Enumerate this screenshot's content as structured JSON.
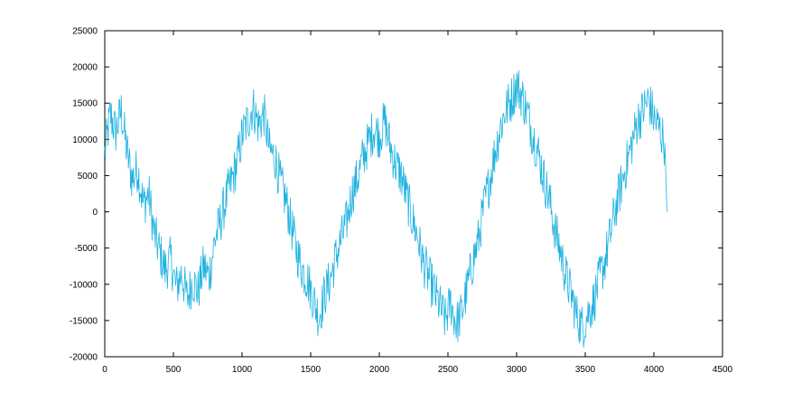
{
  "chart_data": {
    "type": "line",
    "title": "",
    "xlabel": "",
    "ylabel": "",
    "xlim": [
      0,
      4500
    ],
    "ylim": [
      -20000,
      25000
    ],
    "x_ticks": [
      0,
      500,
      1000,
      1500,
      2000,
      2500,
      3000,
      3500,
      4000,
      4500
    ],
    "y_ticks": [
      -20000,
      -15000,
      -10000,
      -5000,
      0,
      5000,
      10000,
      15000,
      20000,
      25000
    ],
    "x_tick_labels": [
      "0",
      "500",
      "1000",
      "1500",
      "2000",
      "2500",
      "3000",
      "3500",
      "4000",
      "4500"
    ],
    "y_tick_labels": [
      "-20000",
      "-15000",
      "-10000",
      "-5000",
      "0",
      "5000",
      "10000",
      "15000",
      "20000",
      "25000"
    ],
    "grid": false,
    "legend": "none",
    "series": [
      {
        "color": "#1fb2e0",
        "x": [
          0,
          40,
          80,
          120,
          160,
          200,
          240,
          280,
          320,
          360,
          400,
          440,
          480,
          520,
          560,
          600,
          640,
          680,
          720,
          760,
          800,
          840,
          880,
          920,
          960,
          1000,
          1040,
          1080,
          1120,
          1160,
          1200,
          1240,
          1280,
          1320,
          1360,
          1400,
          1440,
          1480,
          1520,
          1560,
          1600,
          1640,
          1680,
          1720,
          1760,
          1800,
          1840,
          1880,
          1920,
          1960,
          2000,
          2040,
          2080,
          2120,
          2160,
          2200,
          2240,
          2280,
          2320,
          2360,
          2400,
          2440,
          2480,
          2520,
          2560,
          2600,
          2640,
          2680,
          2720,
          2760,
          2800,
          2840,
          2880,
          2920,
          2960,
          3000,
          3040,
          3080,
          3120,
          3160,
          3200,
          3240,
          3280,
          3320,
          3360,
          3400,
          3440,
          3480,
          3520,
          3560,
          3600,
          3640,
          3680,
          3720,
          3760,
          3800,
          3840,
          3880,
          3920,
          3960,
          4000,
          4040,
          4080,
          4095
        ],
        "y": [
          8000,
          13500,
          11000,
          14000,
          8500,
          4500,
          6000,
          1000,
          2500,
          -3000,
          -5500,
          -8000,
          -6500,
          -10500,
          -8500,
          -12000,
          -9500,
          -11000,
          -7500,
          -9000,
          -4000,
          -1500,
          1500,
          4000,
          6500,
          10500,
          12500,
          14500,
          12000,
          13500,
          8500,
          7500,
          4000,
          1500,
          -2000,
          -5500,
          -8000,
          -9500,
          -12000,
          -14500,
          -11500,
          -9500,
          -6500,
          -4000,
          -1500,
          2500,
          4500,
          7500,
          9500,
          11500,
          10500,
          12500,
          9000,
          6500,
          5000,
          2000,
          -1000,
          -3500,
          -7000,
          -9000,
          -11000,
          -13000,
          -15000,
          -12500,
          -15500,
          -14000,
          -10500,
          -7000,
          -4000,
          500,
          4000,
          8000,
          11500,
          14000,
          15500,
          17500,
          16000,
          13500,
          10500,
          8000,
          4500,
          1500,
          -2500,
          -5500,
          -9000,
          -11500,
          -14500,
          -16000,
          -14000,
          -12500,
          -9500,
          -7000,
          -3500,
          500,
          3500,
          6500,
          9500,
          12500,
          14000,
          15500,
          13000,
          11500,
          9500,
          0
        ]
      }
    ]
  }
}
